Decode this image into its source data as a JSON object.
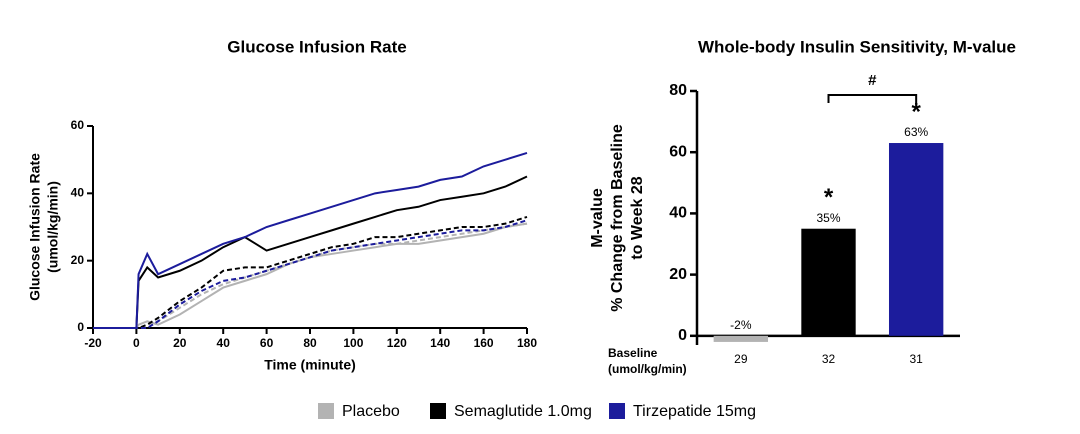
{
  "legend": [
    {
      "name": "Placebo",
      "color": "#b3b3b3"
    },
    {
      "name": "Semaglutide 1.0mg",
      "color": "#000000"
    },
    {
      "name": "Tirzepatide 15mg",
      "color": "#1c1c9c"
    }
  ],
  "chart_data": [
    {
      "type": "line",
      "title": "Glucose Infusion Rate",
      "xlabel": "Time (minute)",
      "ylabel": [
        "Glucose Infusion Rate",
        "(umol/kg/min)"
      ],
      "x": [
        -20,
        -10,
        0,
        1,
        5,
        10,
        20,
        30,
        40,
        50,
        60,
        70,
        80,
        90,
        100,
        110,
        120,
        130,
        140,
        150,
        160,
        170,
        180
      ],
      "xlim": [
        -20,
        180
      ],
      "xticks": [
        -20,
        0,
        20,
        40,
        60,
        80,
        100,
        120,
        140,
        160,
        180
      ],
      "ylim": [
        0,
        60
      ],
      "yticks": [
        0,
        20,
        40,
        60
      ],
      "series": [
        {
          "color": "#b3b3b3",
          "dashed": true,
          "values": [
            0,
            0,
            0,
            0,
            1,
            2,
            6,
            10,
            13,
            15,
            17,
            19,
            21,
            23,
            24,
            25,
            25,
            26,
            27,
            28,
            29,
            30,
            31
          ]
        },
        {
          "color": "#b3b3b3",
          "dashed": false,
          "values": [
            0,
            0,
            0,
            1,
            2,
            1,
            4,
            8,
            12,
            14,
            16,
            19,
            21,
            22,
            23,
            24,
            25,
            25,
            26,
            27,
            28,
            30,
            31
          ]
        },
        {
          "color": "#000000",
          "dashed": true,
          "values": [
            0,
            0,
            0,
            0,
            1,
            3,
            8,
            12,
            17,
            18,
            18,
            20,
            22,
            24,
            25,
            27,
            27,
            28,
            29,
            30,
            30,
            31,
            33
          ]
        },
        {
          "color": "#1c1c9c",
          "dashed": true,
          "values": [
            0,
            0,
            0,
            0,
            0,
            2,
            7,
            11,
            14,
            15,
            17,
            19,
            21,
            23,
            24,
            25,
            26,
            27,
            28,
            29,
            29,
            30,
            32
          ]
        },
        {
          "color": "#000000",
          "dashed": false,
          "values": [
            0,
            0,
            0,
            14,
            18,
            15,
            17,
            20,
            24,
            27,
            23,
            25,
            27,
            29,
            31,
            33,
            35,
            36,
            38,
            39,
            40,
            42,
            45
          ]
        },
        {
          "color": "#1c1c9c",
          "dashed": false,
          "values": [
            0,
            0,
            0,
            16,
            22,
            16,
            19,
            22,
            25,
            27,
            30,
            32,
            34,
            36,
            38,
            40,
            41,
            42,
            44,
            45,
            48,
            50,
            52
          ]
        }
      ]
    },
    {
      "type": "bar",
      "title": "Whole-body Insulin Sensitivity, M-value",
      "ylabel": [
        "M-value",
        "% Change from Baseline",
        "to Week 28"
      ],
      "category_title": [
        "Baseline",
        "(umol/kg/min)"
      ],
      "categories": [
        "29",
        "32",
        "31"
      ],
      "values": [
        -2,
        35,
        63
      ],
      "value_labels": [
        "-2%",
        "35%",
        "63%"
      ],
      "colors": [
        "#b3b3b3",
        "#000000",
        "#1c1c9c"
      ],
      "ylim": [
        -3,
        80
      ],
      "yticks": [
        0,
        20,
        40,
        60,
        80
      ],
      "stars": [
        {
          "index": 1,
          "label": "*"
        },
        {
          "index": 2,
          "label": "*"
        }
      ],
      "bracket": {
        "from": 1,
        "to": 2,
        "label": "#"
      }
    }
  ]
}
